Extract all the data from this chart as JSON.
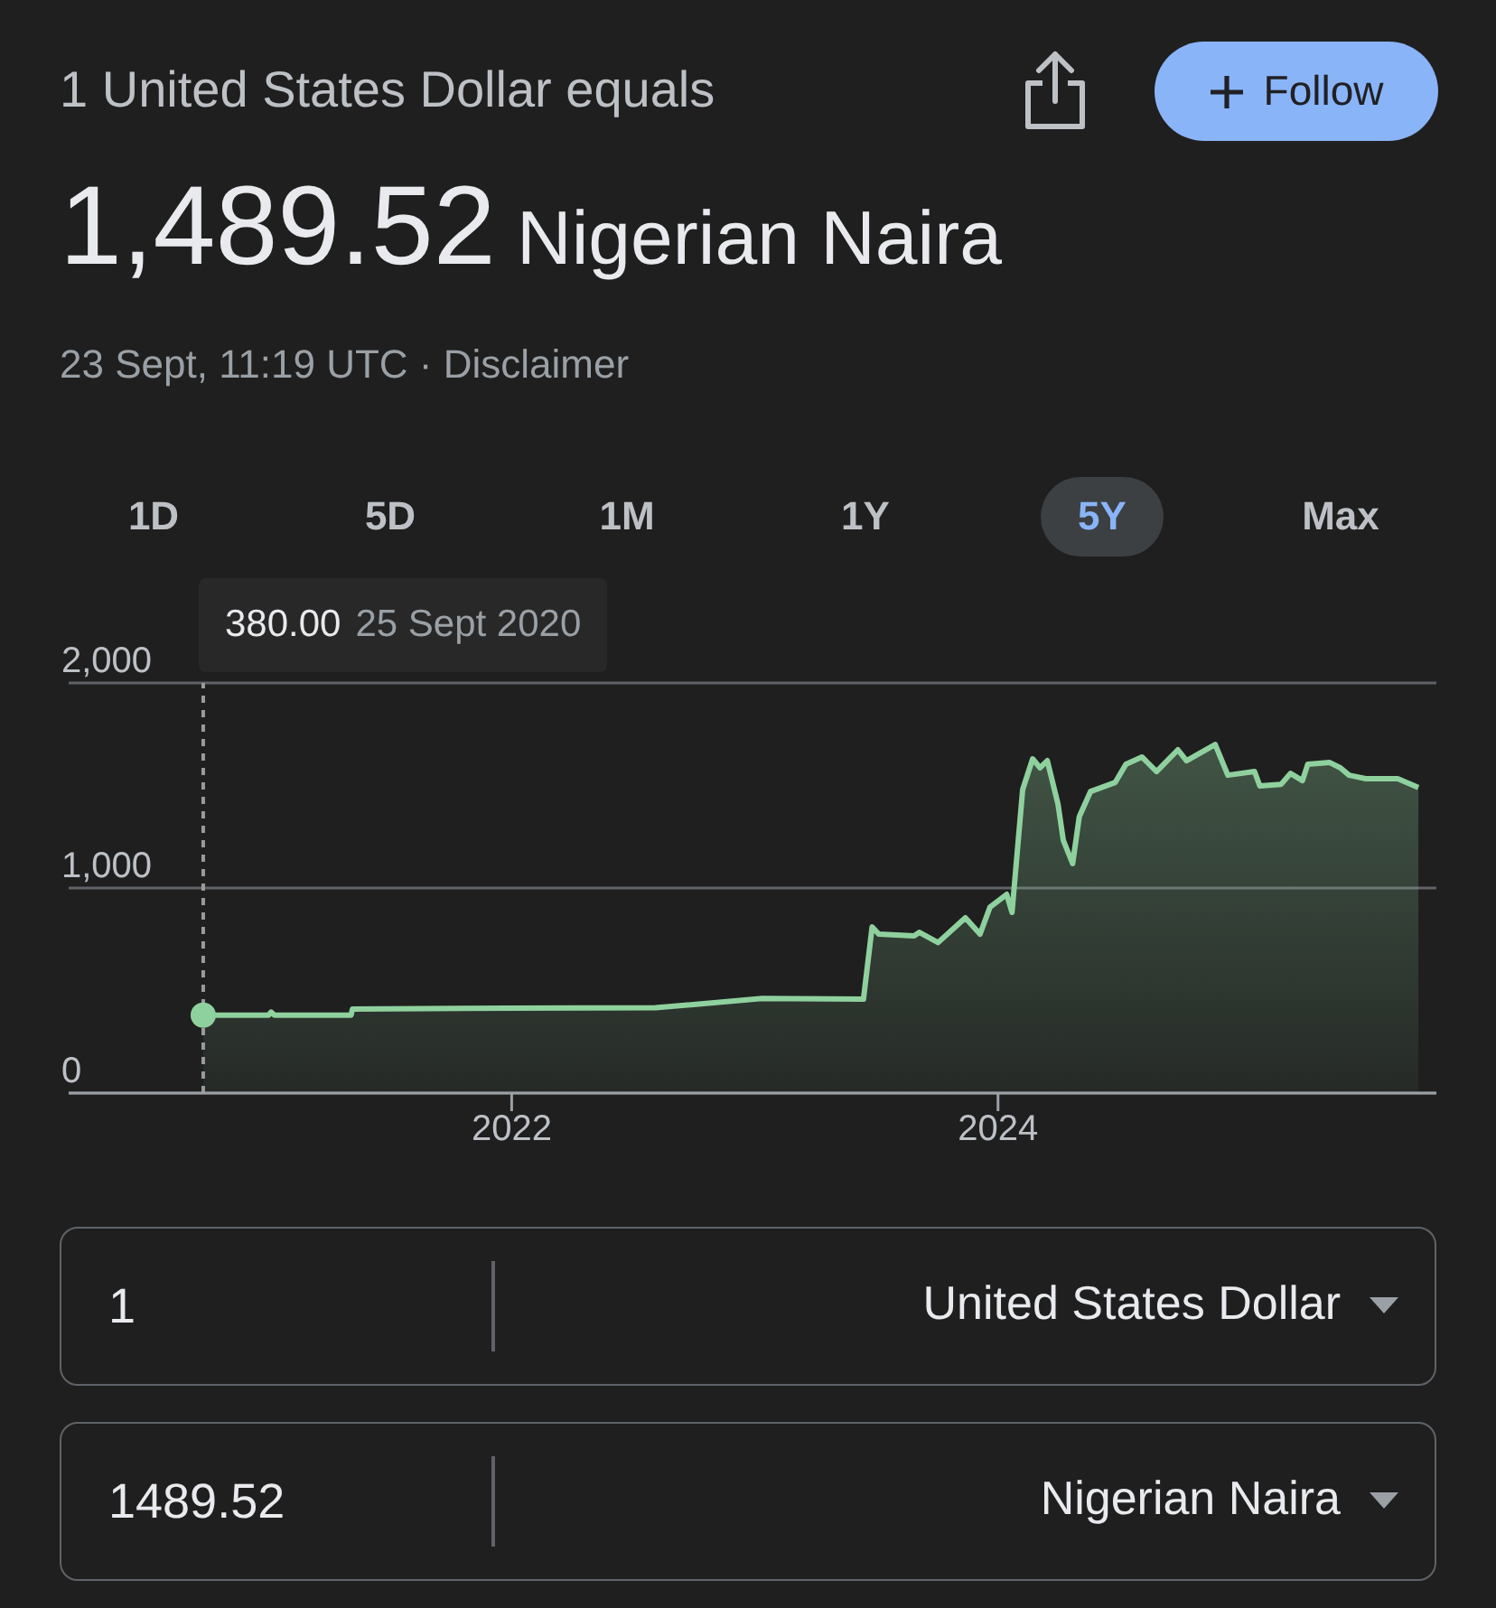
{
  "chart_data": {
    "type": "area",
    "title": "1 United States Dollar equals",
    "subtitle": "1,489.52 Nigerian Naira",
    "annotations": [
      "23 Sept, 11:19 UTC · Disclaimer",
      "380.00 25 Sept 2020",
      "Follow",
      "1D",
      "5D",
      "1M",
      "1Y",
      "5Y",
      "Max",
      "1",
      "United States Dollar",
      "1489.52",
      "Nigerian Naira"
    ],
    "x": [
      "2020-09-25",
      "2021-01-01",
      "2021-01-05",
      "2021-01-10",
      "2021-05-05",
      "2021-05-07",
      "2021-12-25",
      "2022-08-05",
      "2023-01-12",
      "2023-06-13",
      "2023-06-26",
      "2023-07-06",
      "2023-08-28",
      "2023-09-05",
      "2023-10-03",
      "2023-11-13",
      "2023-12-05",
      "2023-12-20",
      "2024-01-14",
      "2024-01-22",
      "2024-02-07",
      "2024-02-22",
      "2024-03-04",
      "2024-03-15",
      "2024-03-31",
      "2024-04-08",
      "2024-04-22",
      "2024-05-02",
      "2024-05-19",
      "2024-06-25",
      "2024-07-11",
      "2024-08-04",
      "2024-08-26",
      "2024-09-27",
      "2024-10-10",
      "2024-11-22",
      "2024-12-11",
      "2025-01-20",
      "2025-01-28",
      "2025-03-01",
      "2025-03-15",
      "2025-04-02",
      "2025-04-10",
      "2025-05-13",
      "2025-05-29",
      "2025-06-11",
      "2025-07-06",
      "2025-08-23",
      "2025-09-23"
    ],
    "series": [
      {
        "color": "#8fd19e",
        "values": [
          380,
          380,
          395,
          380,
          380,
          410,
          414,
          416,
          461,
          458,
          810,
          775,
          767,
          784,
          734,
          855,
          775,
          907,
          969,
          881,
          1480,
          1630,
          1586,
          1621,
          1410,
          1233,
          1119,
          1348,
          1471,
          1515,
          1604,
          1639,
          1568,
          1674,
          1621,
          1700,
          1550,
          1568,
          1498,
          1506,
          1559,
          1524,
          1604,
          1612,
          1586,
          1550,
          1533,
          1533,
          1490
        ]
      }
    ],
    "xlim": [
      "2020-03-07",
      "2025-10-20"
    ],
    "xticks": [
      "2022",
      "2024"
    ],
    "ylim": [
      0,
      2000
    ],
    "yticks": [
      0,
      {
        "value": 1000,
        "label": "1,000"
      },
      {
        "value": 2000,
        "label": "2,000"
      }
    ],
    "grid": "y",
    "ref_lines": [
      {
        "axis": "x",
        "value": "2020-09-25",
        "color": "#9a9a9a",
        "line_style": "dashed"
      }
    ]
  }
}
